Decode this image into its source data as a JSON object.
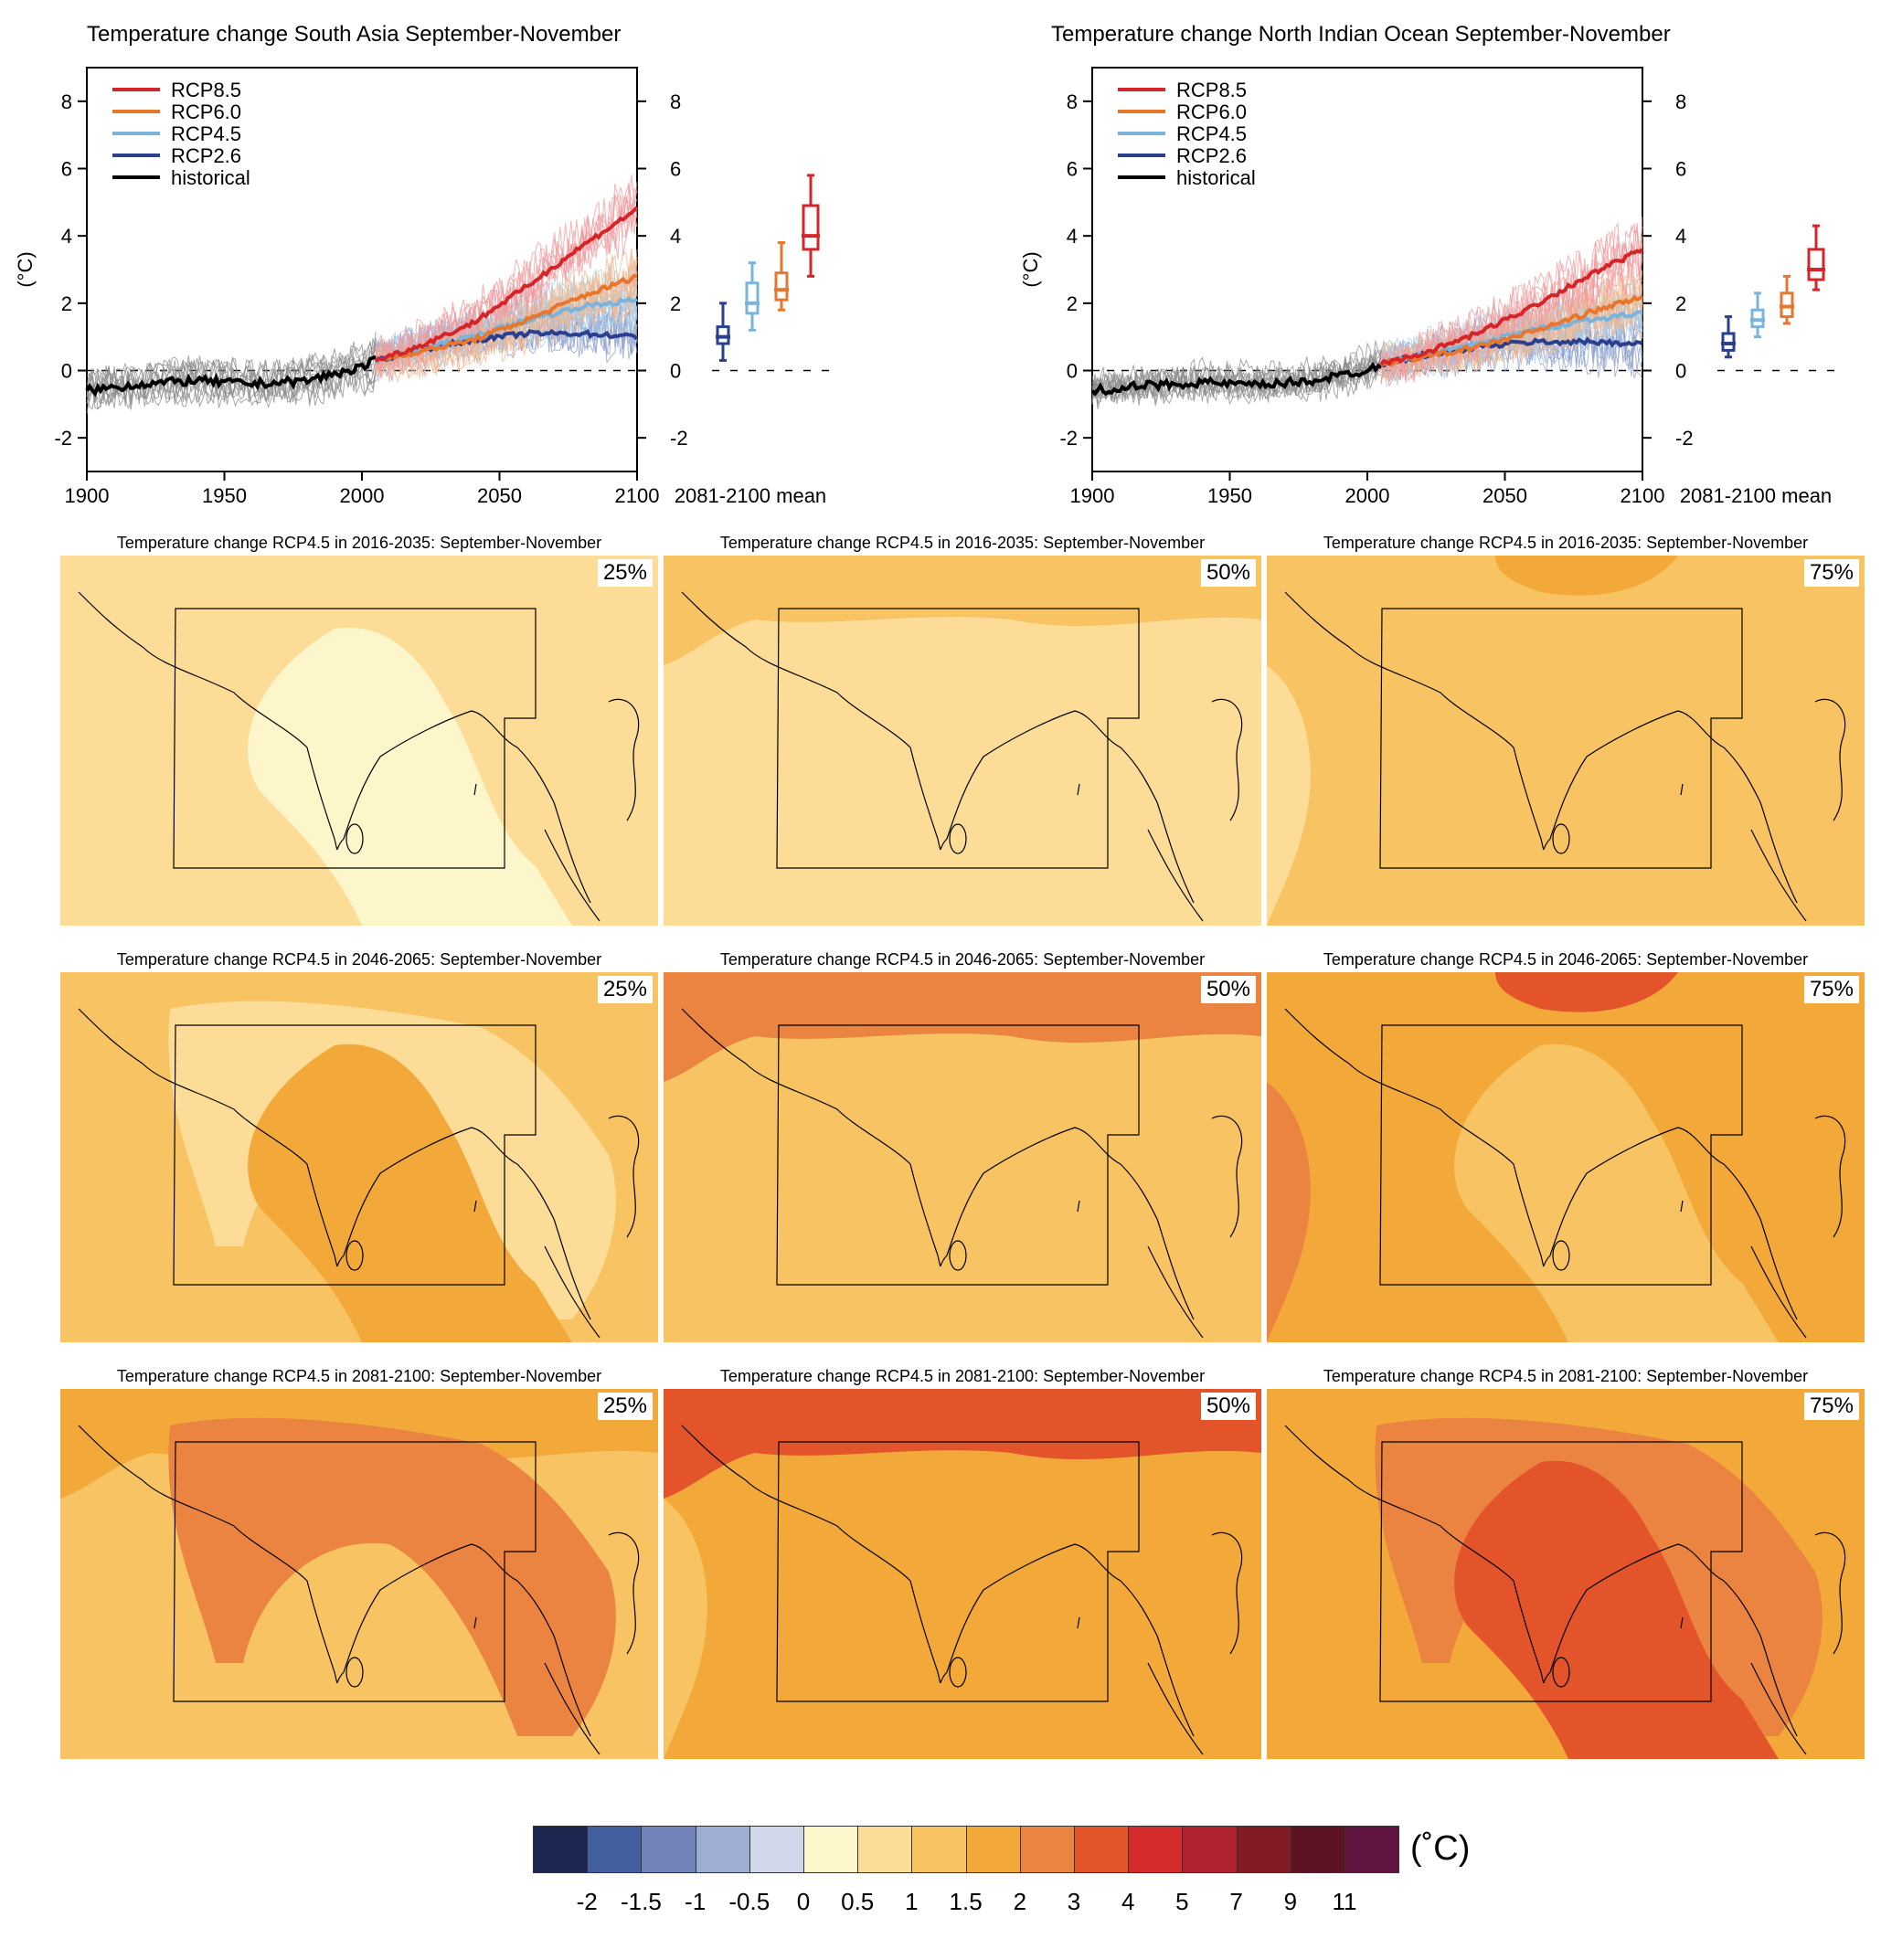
{
  "chart_data": [
    {
      "type": "line",
      "title": "Temperature change South Asia September-November",
      "ylabel": "(°C)",
      "xlim": [
        1900,
        2100
      ],
      "ylim": [
        -3,
        9
      ],
      "xticks": [
        1900,
        1950,
        2000,
        2050,
        2100
      ],
      "yticks": [
        -2,
        0,
        2,
        4,
        6,
        8
      ],
      "legend": {
        "position": "top-left",
        "entries": [
          "RCP8.5",
          "RCP6.0",
          "RCP4.5",
          "RCP2.6",
          "historical"
        ]
      },
      "boxplot_label": "2081-2100 mean",
      "series": [
        {
          "name": "historical",
          "color": "#000000",
          "x": [
            1900,
            1920,
            1940,
            1960,
            1980,
            2000,
            2005
          ],
          "y": [
            -0.6,
            -0.4,
            -0.3,
            -0.4,
            -0.3,
            0.1,
            0.3
          ]
        },
        {
          "name": "RCP2.6",
          "color": "#2a3f8f",
          "x": [
            2005,
            2020,
            2040,
            2060,
            2080,
            2100
          ],
          "y": [
            0.3,
            0.6,
            0.9,
            1.1,
            1.1,
            1.0
          ]
        },
        {
          "name": "RCP4.5",
          "color": "#7ab3dc",
          "x": [
            2005,
            2020,
            2040,
            2060,
            2080,
            2100
          ],
          "y": [
            0.3,
            0.6,
            1.0,
            1.5,
            1.9,
            2.1
          ]
        },
        {
          "name": "RCP6.0",
          "color": "#e8762d",
          "x": [
            2005,
            2020,
            2040,
            2060,
            2080,
            2100
          ],
          "y": [
            0.3,
            0.55,
            0.9,
            1.5,
            2.2,
            2.8
          ]
        },
        {
          "name": "RCP8.5",
          "color": "#d62529",
          "x": [
            2005,
            2020,
            2040,
            2060,
            2080,
            2100
          ],
          "y": [
            0.3,
            0.7,
            1.4,
            2.5,
            3.7,
            4.8
          ]
        }
      ],
      "boxes": [
        {
          "scenario": "RCP2.6",
          "color": "#2a3f8f",
          "min": 0.3,
          "q1": 0.8,
          "median": 1.0,
          "q3": 1.3,
          "max": 2.0
        },
        {
          "scenario": "RCP4.5",
          "color": "#7ab3dc",
          "min": 1.2,
          "q1": 1.7,
          "median": 2.0,
          "q3": 2.6,
          "max": 3.2
        },
        {
          "scenario": "RCP6.0",
          "color": "#e8762d",
          "min": 1.8,
          "q1": 2.1,
          "median": 2.4,
          "q3": 2.9,
          "max": 3.8
        },
        {
          "scenario": "RCP8.5",
          "color": "#d62529",
          "min": 2.8,
          "q1": 3.6,
          "median": 4.0,
          "q3": 4.9,
          "max": 5.8
        }
      ]
    },
    {
      "type": "line",
      "title": "Temperature change North Indian Ocean September-November",
      "ylabel": "(°C)",
      "xlim": [
        1900,
        2100
      ],
      "ylim": [
        -3,
        9
      ],
      "xticks": [
        1900,
        1950,
        2000,
        2050,
        2100
      ],
      "yticks": [
        -2,
        0,
        2,
        4,
        6,
        8
      ],
      "legend": {
        "position": "top-left",
        "entries": [
          "RCP8.5",
          "RCP6.0",
          "RCP4.5",
          "RCP2.6",
          "historical"
        ]
      },
      "boxplot_label": "2081-2100 mean",
      "series": [
        {
          "name": "historical",
          "color": "#000000",
          "x": [
            1900,
            1920,
            1940,
            1960,
            1980,
            2000,
            2005
          ],
          "y": [
            -0.6,
            -0.45,
            -0.35,
            -0.45,
            -0.3,
            0.0,
            0.2
          ]
        },
        {
          "name": "RCP2.6",
          "color": "#2a3f8f",
          "x": [
            2005,
            2020,
            2040,
            2060,
            2080,
            2100
          ],
          "y": [
            0.2,
            0.45,
            0.7,
            0.85,
            0.85,
            0.8
          ]
        },
        {
          "name": "RCP4.5",
          "color": "#7ab3dc",
          "x": [
            2005,
            2020,
            2040,
            2060,
            2080,
            2100
          ],
          "y": [
            0.2,
            0.45,
            0.8,
            1.2,
            1.5,
            1.7
          ]
        },
        {
          "name": "RCP6.0",
          "color": "#e8762d",
          "x": [
            2005,
            2020,
            2040,
            2060,
            2080,
            2100
          ],
          "y": [
            0.2,
            0.4,
            0.7,
            1.15,
            1.7,
            2.2
          ]
        },
        {
          "name": "RCP8.5",
          "color": "#d62529",
          "x": [
            2005,
            2020,
            2040,
            2060,
            2080,
            2100
          ],
          "y": [
            0.2,
            0.5,
            1.1,
            1.9,
            2.8,
            3.6
          ]
        }
      ],
      "boxes": [
        {
          "scenario": "RCP2.6",
          "color": "#2a3f8f",
          "min": 0.4,
          "q1": 0.6,
          "median": 0.8,
          "q3": 1.1,
          "max": 1.6
        },
        {
          "scenario": "RCP4.5",
          "color": "#7ab3dc",
          "min": 1.0,
          "q1": 1.3,
          "median": 1.5,
          "q3": 1.8,
          "max": 2.3
        },
        {
          "scenario": "RCP6.0",
          "color": "#e8762d",
          "min": 1.4,
          "q1": 1.6,
          "median": 1.9,
          "q3": 2.3,
          "max": 2.8
        },
        {
          "scenario": "RCP8.5",
          "color": "#d62529",
          "min": 2.4,
          "q1": 2.7,
          "median": 3.0,
          "q3": 3.6,
          "max": 4.3
        }
      ]
    },
    {
      "type": "heatmap",
      "description_title_template": "Temperature change RCP4.5 in {period}: September-November",
      "maps": [
        {
          "title": "Temperature change RCP4.5 in 2016-2035: September-November",
          "percentile": "25%",
          "base_class": "0.5-1",
          "patch_classes": [
            "0-0.5"
          ]
        },
        {
          "title": "Temperature change RCP4.5 in 2016-2035: September-November",
          "percentile": "50%",
          "base_class": "0.5-1",
          "patch_classes": [
            "1-1.5"
          ]
        },
        {
          "title": "Temperature change RCP4.5 in 2016-2035: September-November",
          "percentile": "75%",
          "base_class": "1-1.5",
          "patch_classes": [
            "0.5-1",
            "1.5-2"
          ]
        },
        {
          "title": "Temperature change RCP4.5 in 2046-2065: September-November",
          "percentile": "25%",
          "base_class": "1-1.5",
          "patch_classes": [
            "0.5-1",
            "1.5-2"
          ]
        },
        {
          "title": "Temperature change RCP4.5 in 2046-2065: September-November",
          "percentile": "50%",
          "base_class": "1-1.5",
          "patch_classes": [
            "1.5-2",
            "2-3"
          ]
        },
        {
          "title": "Temperature change RCP4.5 in 2046-2065: September-November",
          "percentile": "75%",
          "base_class": "1.5-2",
          "patch_classes": [
            "1-1.5",
            "2-3",
            "3-4"
          ]
        },
        {
          "title": "Temperature change RCP4.5 in 2081-2100: September-November",
          "percentile": "25%",
          "base_class": "1-1.5",
          "patch_classes": [
            "1.5-2",
            "2-3"
          ]
        },
        {
          "title": "Temperature change RCP4.5 in 2081-2100: September-November",
          "percentile": "50%",
          "base_class": "1.5-2",
          "patch_classes": [
            "1-1.5",
            "2-3",
            "3-4"
          ]
        },
        {
          "title": "Temperature change RCP4.5 in 2081-2100: September-November",
          "percentile": "75%",
          "base_class": "1.5-2",
          "patch_classes": [
            "2-3",
            "3-4"
          ]
        }
      ]
    }
  ],
  "colorbar": {
    "unit": "(˚C)",
    "colors": [
      "#1d2551",
      "#445fa0",
      "#7082b8",
      "#9dadd3",
      "#cfd7e8",
      "#fef6cb",
      "#fcdc97",
      "#f8c463",
      "#f2a93a",
      "#eb8440",
      "#e3542b",
      "#d42b2c",
      "#b0222f",
      "#811c25",
      "#5c1222",
      "#5f1540"
    ],
    "labels": [
      "-2",
      "-1.5",
      "-1",
      "-0.5",
      "0",
      "0.5",
      "1",
      "1.5",
      "2",
      "3",
      "4",
      "5",
      "7",
      "9",
      "11"
    ]
  },
  "class_colors": {
    "0-0.5": "#fef6cb",
    "0.5-1": "#fcdc97",
    "1-1.5": "#f8c463",
    "1.5-2": "#f2a93a",
    "2-3": "#eb8440",
    "3-4": "#e3542b"
  }
}
